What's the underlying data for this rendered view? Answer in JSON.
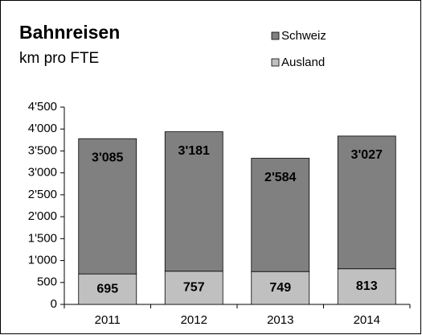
{
  "chart_data": {
    "type": "stacked_bar",
    "title": "Bahnreisen",
    "subtitle": "km pro FTE",
    "categories": [
      "2011",
      "2012",
      "2013",
      "2014"
    ],
    "series": [
      {
        "name": "Schweiz",
        "color": "#808080",
        "values": [
          3085,
          3181,
          2584,
          3027
        ],
        "value_labels": [
          "3'085",
          "3'181",
          "2'584",
          "3'027"
        ]
      },
      {
        "name": "Ausland",
        "color": "#c0c0c0",
        "values": [
          695,
          757,
          749,
          813
        ]
      }
    ],
    "ylim": [
      0,
      4500
    ],
    "yticks": [
      0,
      500,
      {
        "value": 1000,
        "label": "1'000"
      },
      {
        "value": 1500,
        "label": "1'500"
      },
      {
        "value": 2000,
        "label": "2'000"
      },
      {
        "value": 2500,
        "label": "2'500"
      },
      {
        "value": 3000,
        "label": "3'000"
      },
      {
        "value": 3500,
        "label": "3'500"
      },
      {
        "value": 4000,
        "label": "4'000"
      },
      {
        "value": 4500,
        "label": "4'500"
      }
    ],
    "grid": false,
    "legend": "top-right"
  }
}
